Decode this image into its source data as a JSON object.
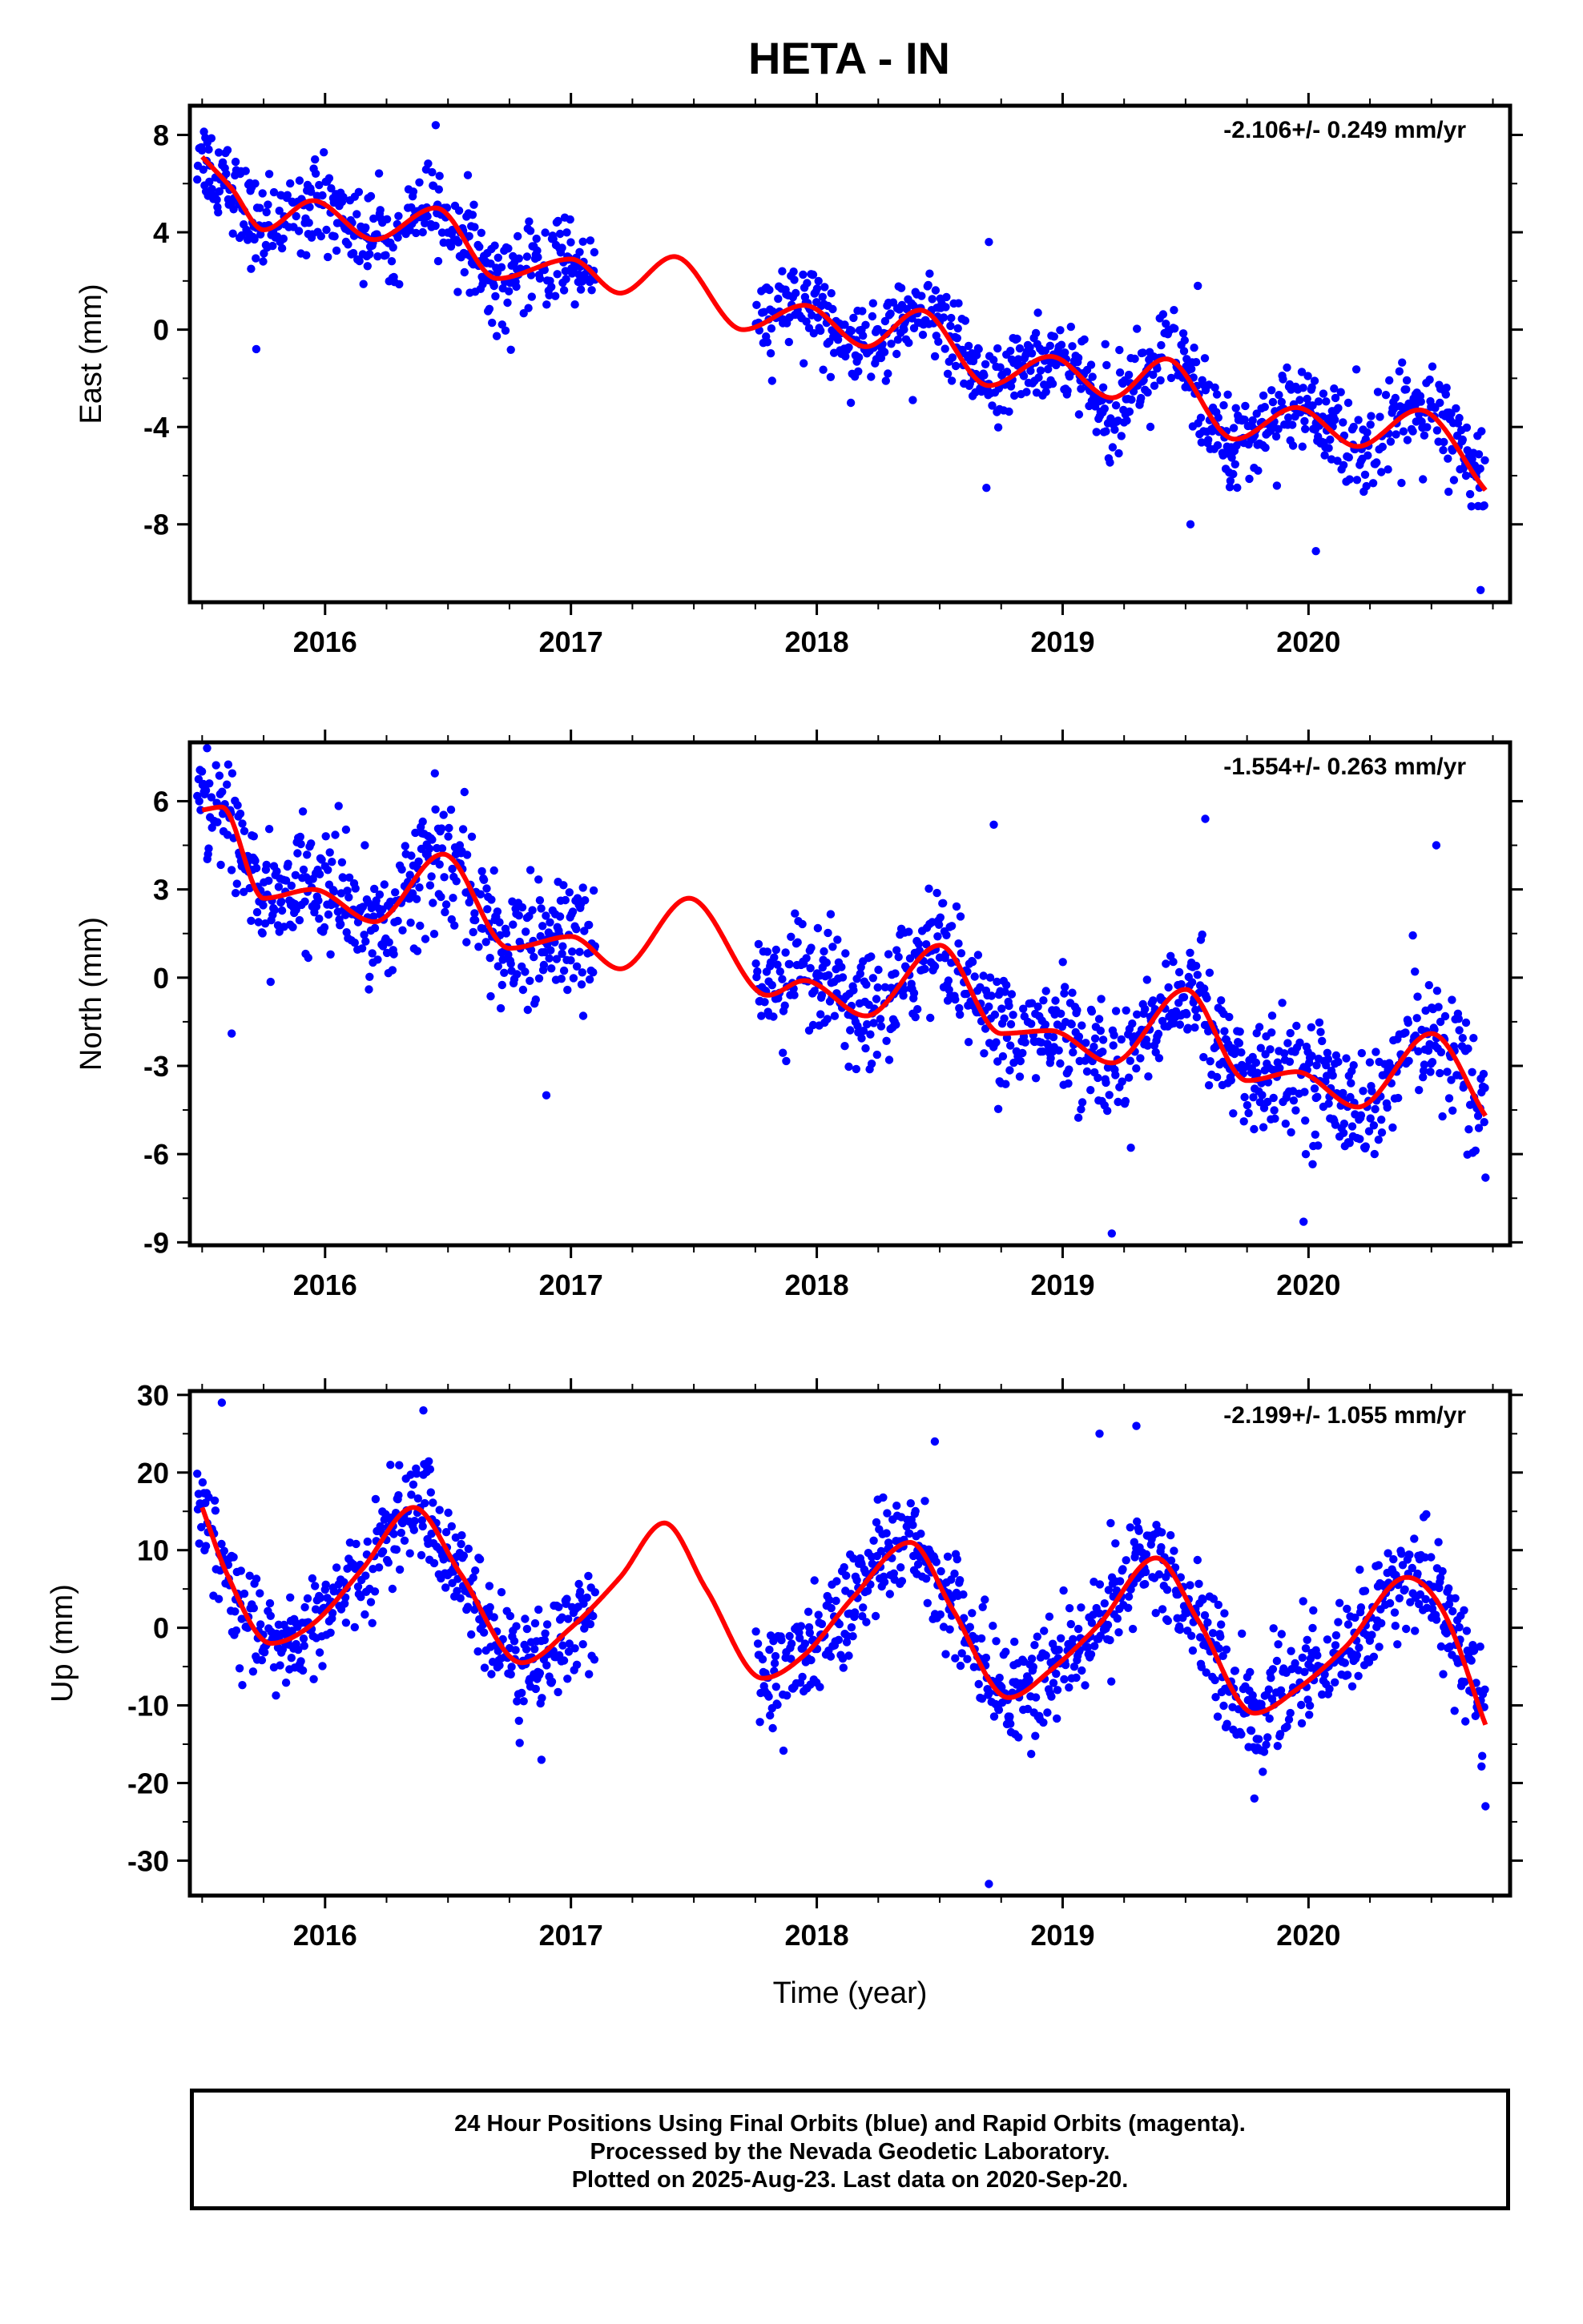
{
  "title": "HETA - IN",
  "colors": {
    "final_orbits": "#0000ff",
    "model_fit": "#ff0000",
    "frame": "#000000"
  },
  "footer": {
    "line1": "24 Hour Positions Using Final Orbits (blue) and Rapid Orbits (magenta).",
    "line2": "Processed by the Nevada Geodetic Laboratory.",
    "line3": "Plotted on 2025-Aug-23. Last data on 2020-Sep-20."
  },
  "chart_data": [
    {
      "type": "scatter",
      "component": "east",
      "ylabel": "East (mm)",
      "xlabel": "",
      "rate_label": "-2.106+/- 0.249 mm/yr",
      "xlim": [
        2015.45,
        2020.82
      ],
      "ylim": [
        -11.2,
        9.2
      ],
      "yticks": [
        8,
        4,
        0,
        -4,
        -8
      ],
      "ytick_labels": [
        "8",
        "4",
        "0",
        "-4",
        "-8"
      ],
      "xticks": [
        2016,
        2017,
        2018,
        2019,
        2020
      ],
      "xtick_labels": [
        "2016",
        "2017",
        "2018",
        "2019",
        "2020"
      ],
      "data_start": 2015.48,
      "data_end": 2020.72,
      "gap": [
        2017.1,
        2017.75
      ],
      "fit_curve": {
        "x": [
          2015.5,
          2015.62,
          2015.75,
          2015.95,
          2016.2,
          2016.45,
          2016.7,
          2017.0,
          2017.2,
          2017.42,
          2017.7,
          2017.95,
          2018.2,
          2018.42,
          2018.7,
          2018.95,
          2019.2,
          2019.42,
          2019.7,
          2019.95,
          2020.2,
          2020.45,
          2020.72
        ],
        "y": [
          7.1,
          5.8,
          4.1,
          5.3,
          3.7,
          5.0,
          2.1,
          2.9,
          1.5,
          3.0,
          0.0,
          1.0,
          -0.7,
          0.8,
          -2.3,
          -1.1,
          -2.8,
          -1.2,
          -4.5,
          -3.2,
          -4.8,
          -3.3,
          -6.6
        ]
      },
      "scatter_spread": 1.2,
      "outliers": [
        {
          "x": 2015.72,
          "y": -0.8
        },
        {
          "x": 2016.45,
          "y": 8.4
        },
        {
          "x": 2018.7,
          "y": 3.6
        },
        {
          "x": 2018.69,
          "y": -6.5
        },
        {
          "x": 2019.55,
          "y": 1.8
        },
        {
          "x": 2019.52,
          "y": -8.0
        },
        {
          "x": 2020.03,
          "y": -9.1
        },
        {
          "x": 2020.7,
          "y": -10.7
        }
      ]
    },
    {
      "type": "scatter",
      "component": "north",
      "ylabel": "North (mm)",
      "xlabel": "",
      "rate_label": "-1.554+/- 0.263 mm/yr",
      "xlim": [
        2015.45,
        2020.82
      ],
      "ylim": [
        -9.1,
        8.0
      ],
      "yticks": [
        6,
        3,
        0,
        -3,
        -6,
        -9
      ],
      "ytick_labels": [
        "6",
        "3",
        "0",
        "-3",
        "-6",
        "-9"
      ],
      "xticks": [
        2016,
        2017,
        2018,
        2019,
        2020
      ],
      "xtick_labels": [
        "2016",
        "2017",
        "2018",
        "2019",
        "2020"
      ],
      "data_start": 2015.48,
      "data_end": 2020.72,
      "gap": [
        2017.1,
        2017.75
      ],
      "fit_curve": {
        "x": [
          2015.5,
          2015.58,
          2015.75,
          2015.95,
          2016.2,
          2016.48,
          2016.75,
          2017.0,
          2017.2,
          2017.48,
          2017.8,
          2017.95,
          2018.2,
          2018.5,
          2018.75,
          2018.95,
          2019.2,
          2019.5,
          2019.75,
          2019.95,
          2020.2,
          2020.5,
          2020.72
        ],
        "y": [
          5.7,
          5.8,
          2.7,
          3.0,
          1.9,
          4.2,
          1.0,
          1.4,
          0.3,
          2.7,
          -0.6,
          -0.1,
          -1.3,
          1.1,
          -1.9,
          -1.8,
          -2.9,
          -0.4,
          -3.5,
          -3.2,
          -4.4,
          -1.9,
          -4.7
        ]
      },
      "scatter_spread": 1.3,
      "outliers": [
        {
          "x": 2015.52,
          "y": 7.8
        },
        {
          "x": 2015.62,
          "y": -1.9
        },
        {
          "x": 2016.9,
          "y": -4.0
        },
        {
          "x": 2017.05,
          "y": -1.3
        },
        {
          "x": 2018.72,
          "y": 5.2
        },
        {
          "x": 2019.2,
          "y": -8.7
        },
        {
          "x": 2019.58,
          "y": 5.4
        },
        {
          "x": 2019.98,
          "y": -8.3
        },
        {
          "x": 2020.52,
          "y": 4.5
        },
        {
          "x": 2020.72,
          "y": -6.8
        }
      ]
    },
    {
      "type": "scatter",
      "component": "up",
      "ylabel": "Up (mm)",
      "xlabel": "Time (year)",
      "rate_label": "-2.199+/- 1.055 mm/yr",
      "xlim": [
        2015.45,
        2020.82
      ],
      "ylim": [
        -34.5,
        30.5
      ],
      "yticks": [
        30,
        20,
        10,
        0,
        -10,
        -20,
        -30
      ],
      "ytick_labels": [
        "30",
        "20",
        "10",
        "0",
        "-10",
        "-20",
        "-30"
      ],
      "xticks": [
        2016,
        2017,
        2018,
        2019,
        2020
      ],
      "xtick_labels": [
        "2016",
        "2017",
        "2018",
        "2019",
        "2020"
      ],
      "data_start": 2015.48,
      "data_end": 2020.72,
      "gap": [
        2017.1,
        2017.75
      ],
      "fit_curve": {
        "x": [
          2015.5,
          2015.6,
          2015.78,
          2015.95,
          2016.15,
          2016.36,
          2016.55,
          2016.8,
          2017.0,
          2017.2,
          2017.38,
          2017.55,
          2017.78,
          2017.95,
          2018.15,
          2018.38,
          2018.55,
          2018.78,
          2018.95,
          2019.15,
          2019.38,
          2019.55,
          2019.78,
          2019.95,
          2020.15,
          2020.4,
          2020.55,
          2020.72
        ],
        "y": [
          15.5,
          7.0,
          -2.0,
          0.5,
          7.5,
          15.5,
          7.0,
          -4.5,
          0.0,
          6.5,
          13.5,
          5.0,
          -6.5,
          -3.5,
          4.0,
          11.0,
          2.5,
          -9.0,
          -5.5,
          0.5,
          9.0,
          1.0,
          -11.0,
          -8.0,
          -2.5,
          6.5,
          2.0,
          -12.5
        ]
      },
      "scatter_spread": 4.5,
      "outliers": [
        {
          "x": 2015.58,
          "y": 29.0
        },
        {
          "x": 2016.4,
          "y": 28.0
        },
        {
          "x": 2016.88,
          "y": -17.0
        },
        {
          "x": 2018.48,
          "y": 24.0
        },
        {
          "x": 2018.7,
          "y": -33.0
        },
        {
          "x": 2019.15,
          "y": 25.0
        },
        {
          "x": 2019.3,
          "y": 26.0
        },
        {
          "x": 2019.78,
          "y": -22.0
        },
        {
          "x": 2020.72,
          "y": -23.0
        }
      ]
    }
  ]
}
